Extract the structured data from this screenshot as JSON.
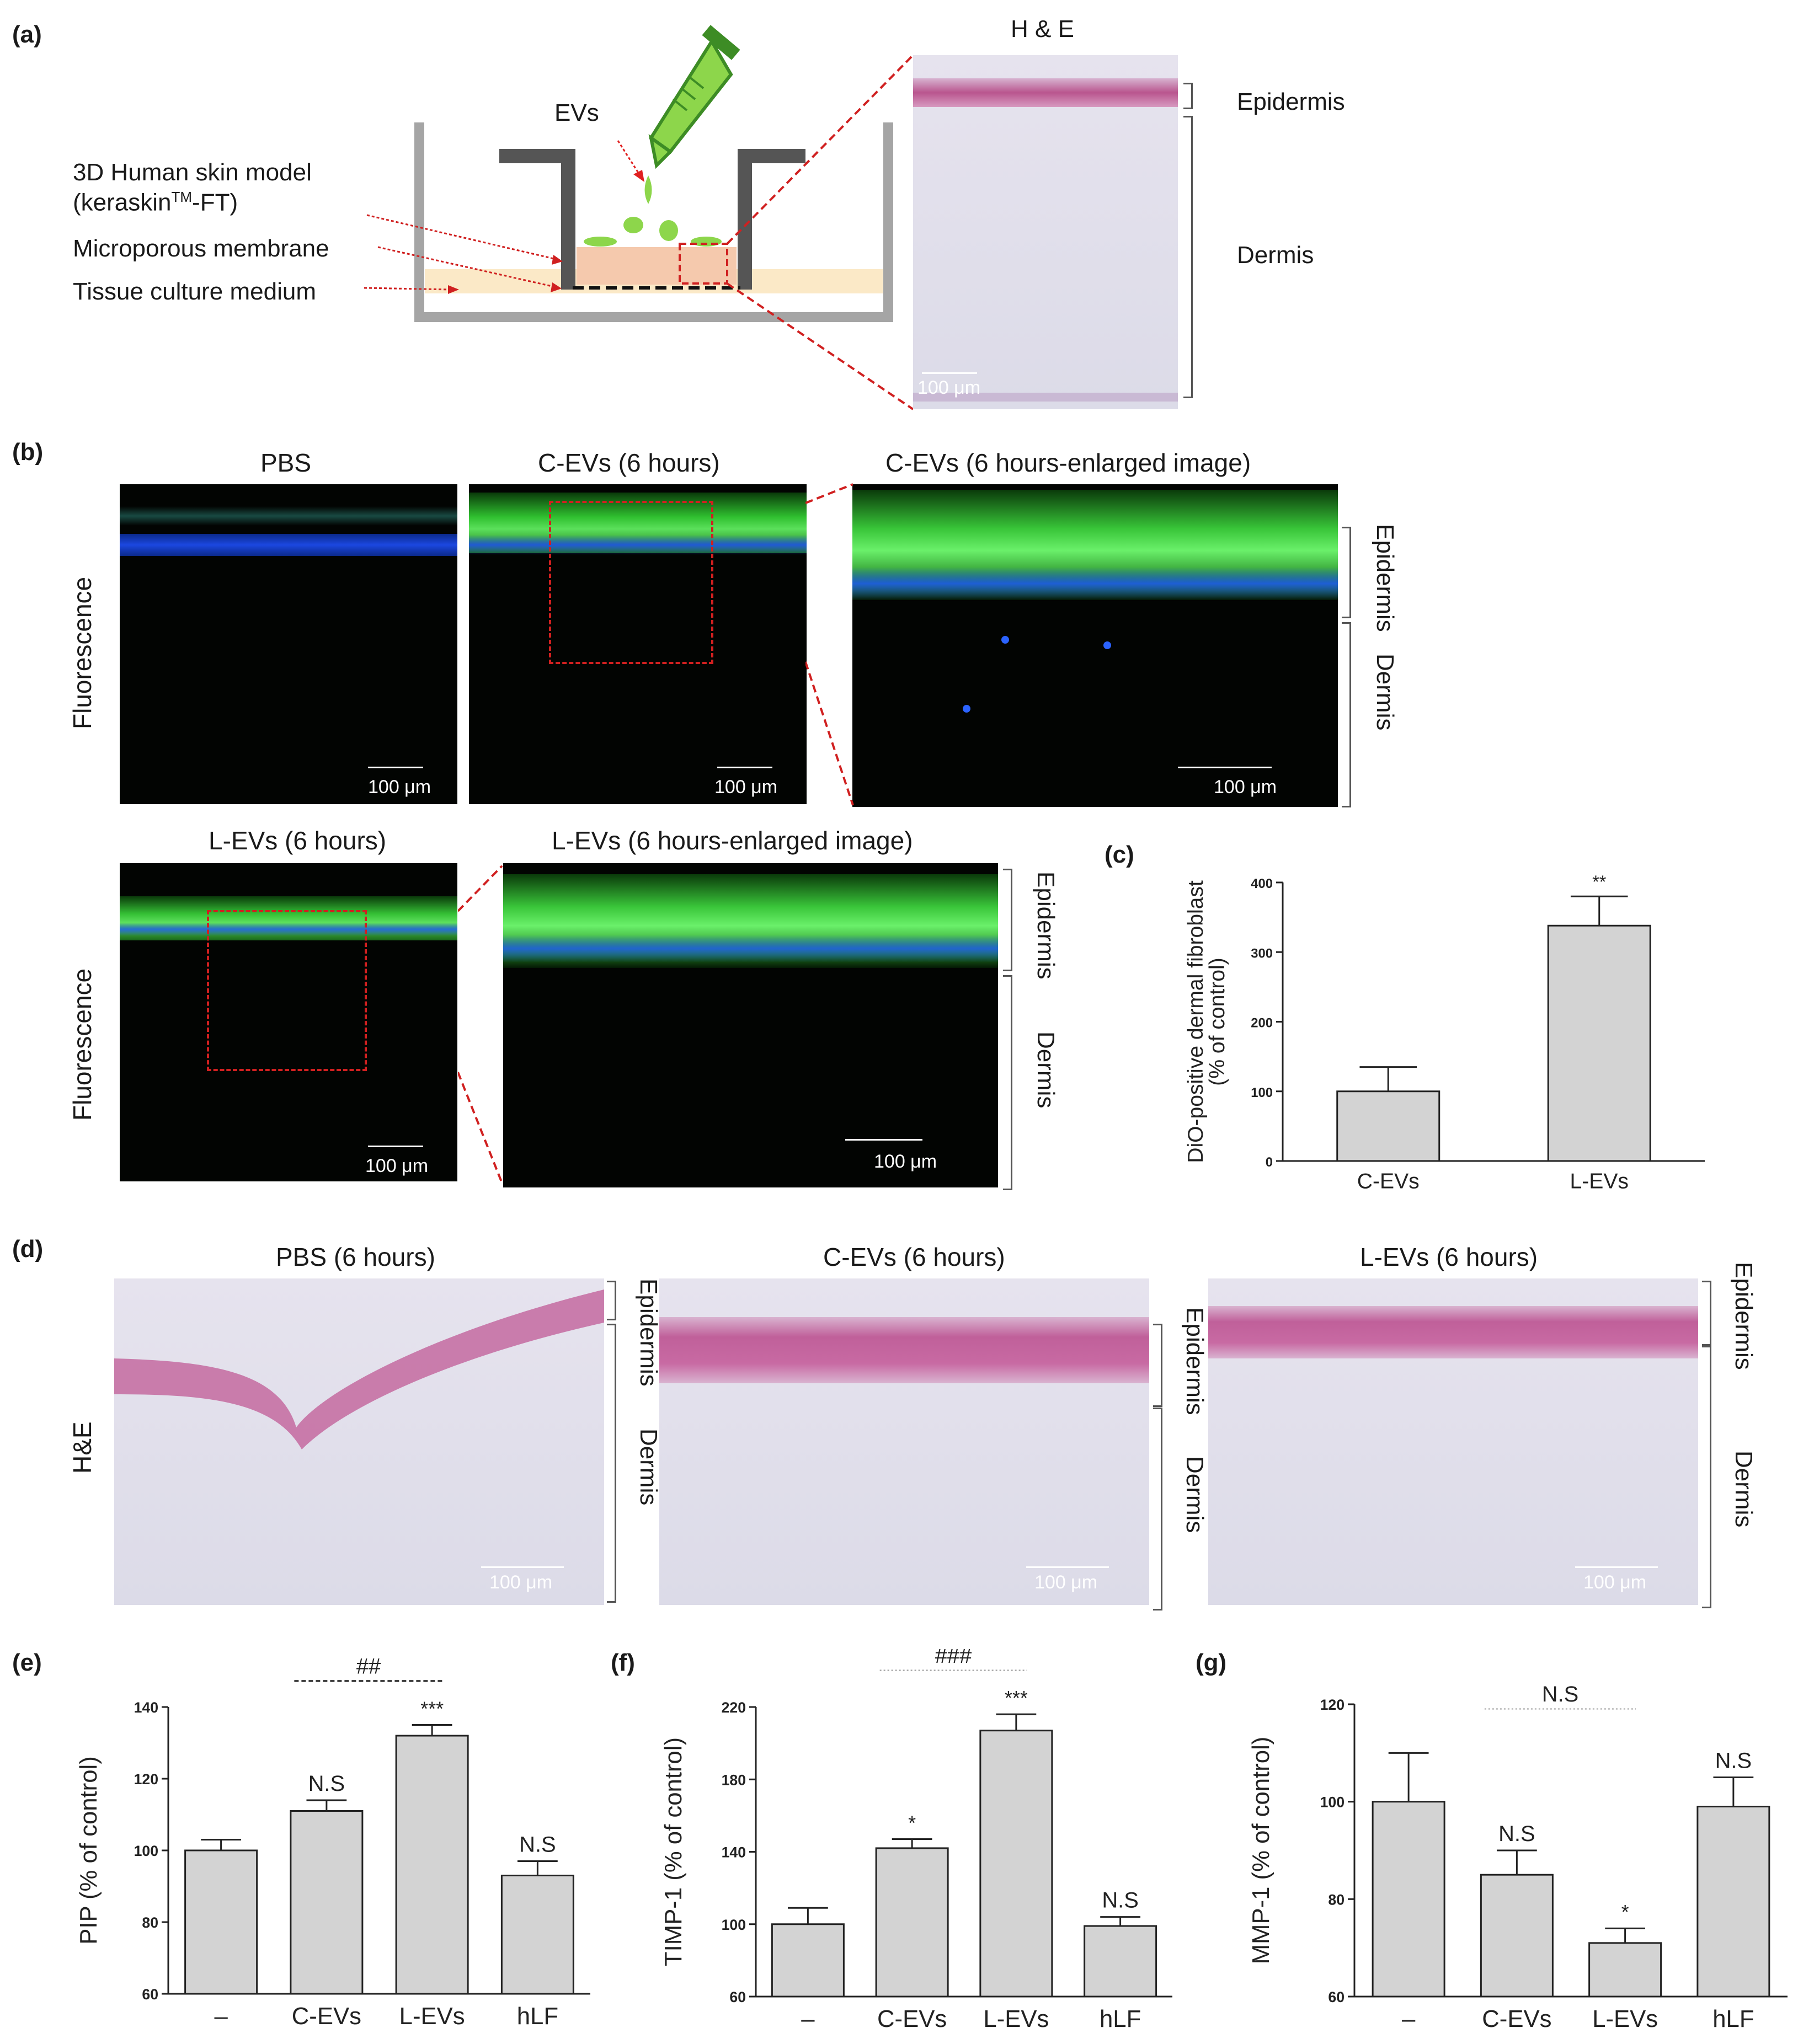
{
  "panels": {
    "a": {
      "label": "(a)",
      "he_title": "H & E",
      "evs": "EVs",
      "legend": [
        "3D Human skin model",
        "(keraskin",
        "TM",
        "-FT)",
        "Microporous membrane",
        "Tissue culture medium"
      ],
      "scale": "100 μm",
      "layers": [
        "Epidermis",
        "Dermis"
      ]
    },
    "b": {
      "label": "(b)",
      "row_label": "Fluorescence",
      "titles": [
        "PBS",
        "C-EVs (6 hours)",
        "C-EVs (6 hours-enlarged image)",
        "L-EVs (6 hours)",
        "L-EVs (6 hours-enlarged image)"
      ],
      "scale": "100 μm",
      "layers": [
        "Epidermis",
        "Dermis"
      ]
    },
    "c": {
      "label": "(c)"
    },
    "d": {
      "label": "(d)",
      "row_label": "H&E",
      "titles": [
        "PBS (6 hours)",
        "C-EVs (6 hours)",
        "L-EVs (6 hours)"
      ],
      "scale": "100 μm",
      "layers": [
        "Epidermis",
        "Dermis"
      ]
    },
    "e": {
      "label": "(e)"
    },
    "f": {
      "label": "(f)"
    },
    "g": {
      "label": "(g)"
    }
  },
  "chart_data": [
    {
      "id": "c",
      "type": "bar",
      "categories": [
        "C-EVs",
        "L-EVs"
      ],
      "values": [
        100,
        338
      ],
      "errors": [
        35,
        42
      ],
      "ylabel": "DiO-positive dermal fibroblast\n(% of control)",
      "ylim": [
        0,
        400
      ],
      "yticks": [
        0,
        100,
        200,
        300,
        400
      ],
      "annotations": [
        "",
        "**"
      ],
      "comparison": null
    },
    {
      "id": "e",
      "type": "bar",
      "categories": [
        "–",
        "C-EVs",
        "L-EVs",
        "hLF"
      ],
      "values": [
        100,
        111,
        132,
        93
      ],
      "errors": [
        3,
        3,
        3,
        4
      ],
      "ylabel": "PIP (% of control)",
      "ylim": [
        60,
        140
      ],
      "yticks": [
        60,
        80,
        100,
        120,
        140
      ],
      "annotations": [
        "",
        "N.S",
        "***",
        "N.S"
      ],
      "comparison": {
        "label": "##",
        "from": 1,
        "to": 2,
        "style": "dashed"
      }
    },
    {
      "id": "f",
      "type": "bar",
      "categories": [
        "–",
        "C-EVs",
        "L-EVs",
        "hLF"
      ],
      "values": [
        100,
        142,
        207,
        99
      ],
      "errors": [
        9,
        5,
        9,
        5
      ],
      "ylabel": "TIMP-1 (% of control)",
      "ylim": [
        60,
        220
      ],
      "yticks": [
        60,
        100,
        140,
        180,
        220
      ],
      "annotations": [
        "",
        "*",
        "***",
        "N.S"
      ],
      "comparison": {
        "label": "###",
        "from": 1,
        "to": 2,
        "style": "dotted"
      }
    },
    {
      "id": "g",
      "type": "bar",
      "categories": [
        "–",
        "C-EVs",
        "L-EVs",
        "hLF"
      ],
      "values": [
        100,
        85,
        71,
        99
      ],
      "errors": [
        10,
        5,
        3,
        6
      ],
      "ylabel": "MMP-1 (% of control)",
      "ylim": [
        60,
        120
      ],
      "yticks": [
        60,
        80,
        100,
        120
      ],
      "annotations": [
        "",
        "N.S",
        "*",
        "N.S"
      ],
      "comparison": {
        "label": "N.S",
        "from": 1,
        "to": 2,
        "style": "dotted"
      }
    }
  ]
}
